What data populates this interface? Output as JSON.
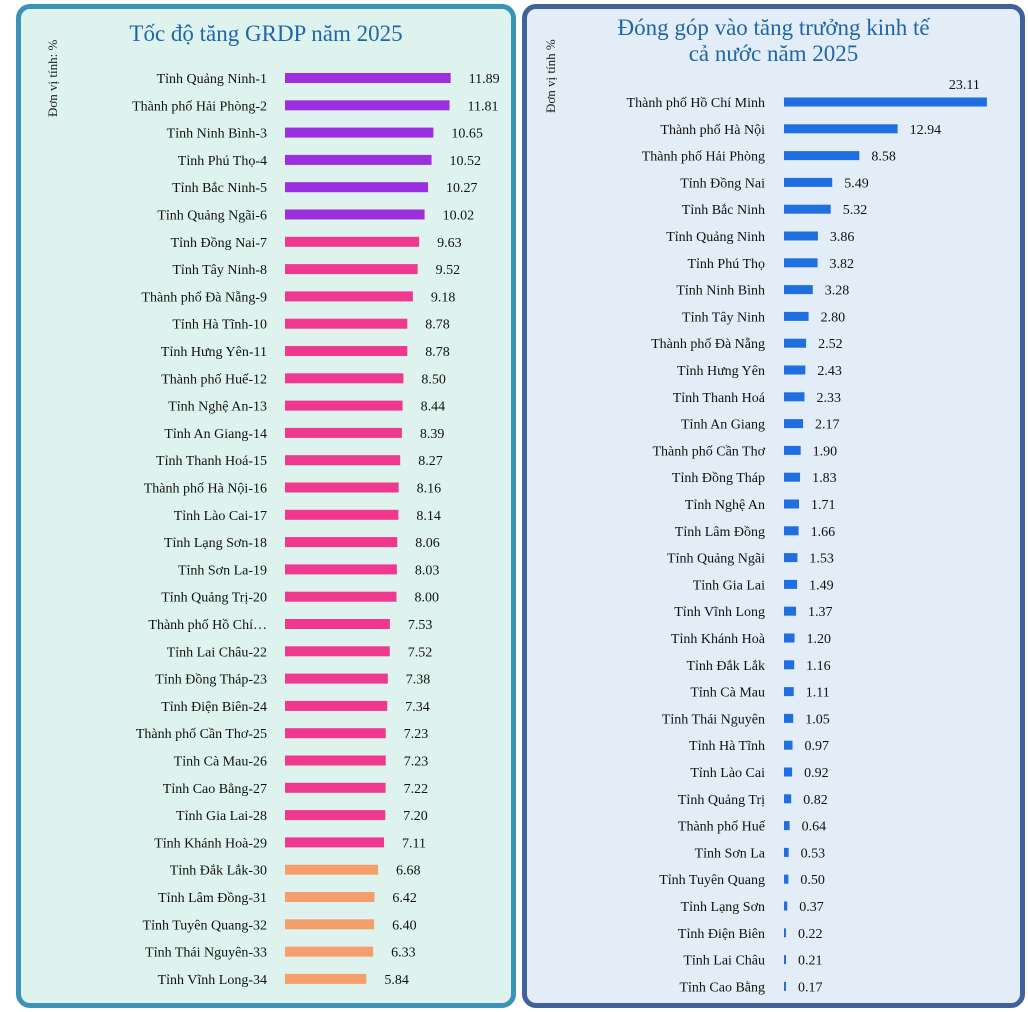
{
  "chart_data": [
    {
      "type": "bar",
      "orientation": "horizontal",
      "title": "Tốc độ tăng GRDP năm 2025",
      "unit_label": "Đơn vị tính: %",
      "categories": [
        "Tỉnh Quảng Ninh-1",
        "Thành phố Hải Phòng-2",
        "Tỉnh Ninh Bình-3",
        "Tỉnh Phú Thọ-4",
        "Tỉnh Bắc Ninh-5",
        "Tỉnh Quảng Ngãi-6",
        "Tỉnh Đồng Nai-7",
        "Tỉnh Tây Ninh-8",
        "Thành phố Đà Nẵng-9",
        "Tỉnh Hà Tĩnh-10",
        "Tỉnh Hưng Yên-11",
        "Thành phố Huế-12",
        "Tỉnh Nghệ An-13",
        "Tỉnh An Giang-14",
        "Tỉnh Thanh Hoá-15",
        "Thành phố Hà Nội-16",
        "Tỉnh Lào Cai-17",
        "Tỉnh Lạng Sơn-18",
        "Tỉnh Sơn La-19",
        "Tỉnh Quảng Trị-20",
        "Thành phố Hồ Chí…",
        "Tỉnh Lai Châu-22",
        "Tỉnh Đồng Tháp-23",
        "Tỉnh Điện Biên-24",
        "Thành phố Cần Thơ-25",
        "Tỉnh Cà Mau-26",
        "Tỉnh Cao Bằng-27",
        "Tỉnh Gia Lai-28",
        "Tỉnh Khánh Hoà-29",
        "Tỉnh Đắk Lắk-30",
        "Tỉnh Lâm Đồng-31",
        "Tỉnh Tuyên Quang-32",
        "Tỉnh Thái Nguyên-33",
        "Tỉnh Vĩnh Long-34"
      ],
      "values": [
        11.89,
        11.81,
        10.65,
        10.52,
        10.27,
        10.02,
        9.63,
        9.52,
        9.18,
        8.78,
        8.78,
        8.5,
        8.44,
        8.39,
        8.27,
        8.16,
        8.14,
        8.06,
        8.03,
        8.0,
        7.53,
        7.52,
        7.38,
        7.34,
        7.23,
        7.23,
        7.22,
        7.2,
        7.11,
        6.68,
        6.42,
        6.4,
        6.33,
        5.84
      ],
      "value_labels": [
        "11.89",
        "11.81",
        "10.65",
        "10.52",
        "10.27",
        "10.02",
        "9.63",
        "9.52",
        "9.18",
        "8.78",
        "8.78",
        "8.50",
        "8.44",
        "8.39",
        "8.27",
        "8.16",
        "8.14",
        "8.06",
        "8.03",
        "8.00",
        "7.53",
        "7.52",
        "7.38",
        "7.34",
        "7.23",
        "7.23",
        "7.22",
        "7.20",
        "7.11",
        "6.68",
        "6.42",
        "6.40",
        "6.33",
        "5.84"
      ],
      "bar_colors": {
        "above_10": "#9b2fe0",
        "7_to_10": "#f0388e",
        "below_7": "#f5a06c"
      },
      "grid": false,
      "legend": "none"
    },
    {
      "type": "bar",
      "orientation": "horizontal",
      "title": "Đóng góp vào tăng trưởng kinh tế cả nước năm 2025",
      "title_lines": [
        "Đóng góp vào tăng trưởng kinh tế",
        "cả nước năm 2025"
      ],
      "unit_label": "Đơn vị tính %",
      "categories": [
        "Thành phố Hồ Chí Minh",
        "Thành phố Hà Nội",
        "Thành phố Hải Phòng",
        "Tỉnh Đồng Nai",
        "Tỉnh Bắc Ninh",
        "Tỉnh Quảng Ninh",
        "Tỉnh Phú Thọ",
        "Tỉnh Ninh Bình",
        "Tỉnh Tây Ninh",
        "Thành phố Đà Nẵng",
        "Tỉnh Hưng Yên",
        "Tỉnh Thanh Hoá",
        "Tỉnh An Giang",
        "Thành phố Cần Thơ",
        "Tỉnh Đồng Tháp",
        "Tỉnh Nghệ An",
        "Tỉnh Lâm Đồng",
        "Tỉnh Quảng Ngãi",
        "Tỉnh Gia Lai",
        "Tỉnh Vĩnh Long",
        "Tỉnh Khánh Hoà",
        "Tỉnh Đắk Lắk",
        "Tỉnh Cà Mau",
        "Tỉnh Thái Nguyên",
        "Tỉnh Hà Tĩnh",
        "Tỉnh Lào Cai",
        "Tỉnh Quảng Trị",
        "Thành phố Huế",
        "Tỉnh Sơn La",
        "Tỉnh Tuyên Quang",
        "Tỉnh Lạng Sơn",
        "Tỉnh Điện Biên",
        "Tỉnh Lai Châu",
        "Tỉnh Cao Bằng"
      ],
      "values": [
        23.11,
        12.94,
        8.58,
        5.49,
        5.32,
        3.86,
        3.82,
        3.28,
        2.8,
        2.52,
        2.43,
        2.33,
        2.17,
        1.9,
        1.83,
        1.71,
        1.66,
        1.53,
        1.49,
        1.37,
        1.2,
        1.16,
        1.11,
        1.05,
        0.97,
        0.92,
        0.82,
        0.64,
        0.53,
        0.5,
        0.37,
        0.22,
        0.21,
        0.17
      ],
      "value_labels": [
        "23.11",
        "12.94",
        "8.58",
        "5.49",
        "5.32",
        "3.86",
        "3.82",
        "3.28",
        "2.80",
        "2.52",
        "2.43",
        "2.33",
        "2.17",
        "1.90",
        "1.83",
        "1.71",
        "1.66",
        "1.53",
        "1.49",
        "1.37",
        "1.20",
        "1.16",
        "1.11",
        "1.05",
        "0.97",
        "0.92",
        "0.82",
        "0.64",
        "0.53",
        "0.50",
        "0.37",
        "0.22",
        "0.21",
        "0.17"
      ],
      "bar_color": "#1f6fe0",
      "grid": false,
      "legend": "none"
    }
  ]
}
